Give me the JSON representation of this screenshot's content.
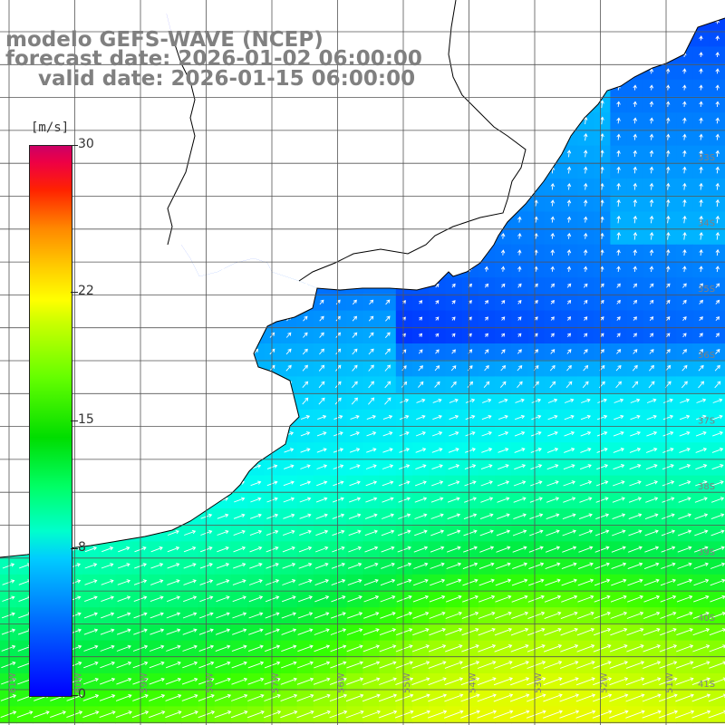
{
  "title": {
    "line1": "modelo GEFS-WAVE (NCEP)",
    "line2": "forecast date: 2026-01-02 06:00:00",
    "line3": "valid date: 2026-01-15 06:00:00"
  },
  "colorbar": {
    "unit": "[m/s]",
    "ticks": [
      "30",
      "22",
      "15",
      "8",
      "0"
    ],
    "tick_values": [
      30,
      22,
      15,
      8,
      0
    ],
    "min": 0,
    "max": 30
  },
  "axes": {
    "lon_labels": [
      "61W",
      "60W",
      "59W",
      "58W",
      "57W",
      "56W",
      "55W",
      "54W",
      "53W",
      "52W",
      "51W"
    ],
    "lat_labels": [
      "33S",
      "34S",
      "35S",
      "36S",
      "37S",
      "38S",
      "39S",
      "40S",
      "41S"
    ]
  },
  "colors": {
    "land": "#ffffff",
    "coast": "#000000",
    "grid": "#555555",
    "arrow": "#ffffff",
    "label": "#808080"
  },
  "field": {
    "variable": "wind speed",
    "units": "m/s",
    "pattern": "weak winds (0-5 m/s) near the coast, increasing to 12-17 m/s toward the southeast, with winds blowing toward the northeast"
  }
}
